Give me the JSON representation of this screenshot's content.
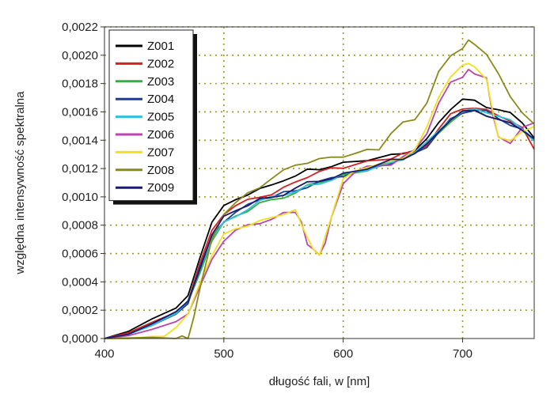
{
  "chart_data": {
    "type": "line",
    "xlabel": "długość fali, w [nm]",
    "ylabel": "względna intensywność spektralna",
    "xlim": [
      400,
      760
    ],
    "ylim": [
      0,
      0.0022
    ],
    "x_ticks": [
      400,
      500,
      600,
      700
    ],
    "x_tick_labels": [
      "400",
      "500",
      "600",
      "700"
    ],
    "y_ticks": [
      0,
      0.0002,
      0.0004,
      0.0006,
      0.0008,
      0.001,
      0.0012,
      0.0014,
      0.0016,
      0.0018,
      0.002,
      0.0022
    ],
    "y_tick_labels": [
      "0,0000",
      "0,0002",
      "0,0004",
      "0,0006",
      "0,0008",
      "0,0010",
      "0,0012",
      "0,0014",
      "0,0016",
      "0,0018",
      "0,0020",
      "0,0022"
    ],
    "grid": "dotted",
    "grid_color": "#9a9a20",
    "legend_position": "top-left",
    "series": [
      {
        "name": "Z001",
        "color": "#000000",
        "x": [
          400,
          420,
          440,
          460,
          470,
          480,
          490,
          500,
          510,
          520,
          530,
          540,
          550,
          560,
          570,
          580,
          590,
          600,
          620,
          640,
          650,
          660,
          670,
          680,
          690,
          700,
          710,
          720,
          730,
          740,
          750,
          760
        ],
        "y": [
          0,
          5e-05,
          0.00013,
          0.00022,
          0.0003,
          0.00058,
          0.00082,
          0.00092,
          0.00098,
          0.00103,
          0.00106,
          0.00108,
          0.00112,
          0.00114,
          0.00118,
          0.0012,
          0.00123,
          0.00124,
          0.00126,
          0.00129,
          0.00132,
          0.00134,
          0.0014,
          0.00152,
          0.00162,
          0.00168,
          0.00168,
          0.00165,
          0.00162,
          0.00158,
          0.00152,
          0.00142
        ]
      },
      {
        "name": "Z002",
        "color": "#d42020",
        "x": [
          400,
          420,
          440,
          460,
          470,
          480,
          490,
          500,
          510,
          520,
          530,
          540,
          550,
          560,
          570,
          580,
          590,
          600,
          620,
          640,
          650,
          660,
          670,
          680,
          690,
          700,
          710,
          720,
          730,
          740,
          750,
          760
        ],
        "y": [
          0,
          4e-05,
          0.00011,
          0.00019,
          0.00028,
          0.00053,
          0.00076,
          0.00088,
          0.00093,
          0.00097,
          0.00101,
          0.00103,
          0.00106,
          0.0011,
          0.00114,
          0.00117,
          0.0012,
          0.00122,
          0.00124,
          0.00127,
          0.0013,
          0.00132,
          0.00138,
          0.00148,
          0.00157,
          0.00162,
          0.00163,
          0.00161,
          0.00158,
          0.00155,
          0.00148,
          0.00132
        ]
      },
      {
        "name": "Z003",
        "color": "#30b040",
        "x": [
          400,
          420,
          440,
          460,
          470,
          480,
          490,
          500,
          510,
          520,
          530,
          540,
          550,
          560,
          570,
          580,
          590,
          600,
          620,
          640,
          650,
          660,
          670,
          680,
          690,
          700,
          710,
          720,
          730,
          740,
          750,
          760
        ],
        "y": [
          0,
          3e-05,
          0.0001,
          0.00017,
          0.00025,
          0.00048,
          0.0007,
          0.00081,
          0.00086,
          0.0009,
          0.00095,
          0.00098,
          0.00101,
          0.00103,
          0.00107,
          0.0011,
          0.00112,
          0.00115,
          0.0012,
          0.00124,
          0.00127,
          0.00131,
          0.00137,
          0.00146,
          0.00154,
          0.00158,
          0.0016,
          0.00158,
          0.00155,
          0.00152,
          0.00148,
          0.0014
        ]
      },
      {
        "name": "Z004",
        "color": "#1f3d90",
        "x": [
          400,
          420,
          440,
          460,
          470,
          480,
          490,
          500,
          510,
          520,
          530,
          540,
          550,
          560,
          570,
          580,
          590,
          600,
          620,
          640,
          650,
          660,
          670,
          680,
          690,
          700,
          710,
          720,
          730,
          740,
          750,
          760
        ],
        "y": [
          0,
          3e-05,
          0.0001,
          0.00017,
          0.00025,
          0.0005,
          0.00073,
          0.00084,
          0.00089,
          0.00093,
          0.00098,
          0.001,
          0.00103,
          0.00105,
          0.00108,
          0.0011,
          0.00112,
          0.00115,
          0.0012,
          0.00124,
          0.00126,
          0.0013,
          0.00136,
          0.00146,
          0.00155,
          0.0016,
          0.00161,
          0.00159,
          0.00155,
          0.00152,
          0.00148,
          0.0014
        ]
      },
      {
        "name": "Z005",
        "color": "#30c0e0",
        "x": [
          400,
          420,
          440,
          460,
          470,
          480,
          490,
          500,
          510,
          520,
          530,
          540,
          550,
          560,
          570,
          580,
          590,
          600,
          620,
          640,
          650,
          660,
          670,
          680,
          690,
          700,
          710,
          720,
          730,
          740,
          750,
          760
        ],
        "y": [
          0,
          3e-05,
          0.0001,
          0.00017,
          0.00025,
          0.00049,
          0.00071,
          0.00082,
          0.00087,
          0.00092,
          0.00096,
          0.00099,
          0.00102,
          0.00104,
          0.00108,
          0.0011,
          0.00112,
          0.00115,
          0.0012,
          0.00124,
          0.00127,
          0.00131,
          0.00137,
          0.00147,
          0.00156,
          0.0016,
          0.00162,
          0.0016,
          0.00156,
          0.00153,
          0.00149,
          0.00141
        ]
      },
      {
        "name": "Z006",
        "color": "#b845b0",
        "x": [
          400,
          420,
          440,
          460,
          470,
          480,
          490,
          500,
          510,
          520,
          530,
          540,
          550,
          560,
          565,
          570,
          575,
          580,
          585,
          590,
          600,
          610,
          620,
          640,
          650,
          660,
          670,
          680,
          690,
          700,
          705,
          710,
          720,
          725,
          730,
          740,
          750,
          760
        ],
        "y": [
          0,
          2e-05,
          7e-05,
          0.00013,
          0.00018,
          0.00035,
          0.00055,
          0.0007,
          0.00077,
          0.0008,
          0.00082,
          0.00084,
          0.00087,
          0.00089,
          0.00081,
          0.00068,
          0.00062,
          0.00059,
          0.00068,
          0.00085,
          0.0011,
          0.00117,
          0.0012,
          0.00124,
          0.00128,
          0.00133,
          0.00145,
          0.00165,
          0.0018,
          0.00186,
          0.00188,
          0.00188,
          0.00183,
          0.0016,
          0.00142,
          0.00138,
          0.00148,
          0.00152
        ]
      },
      {
        "name": "Z007",
        "color": "#f0e020",
        "x": [
          400,
          420,
          440,
          450,
          460,
          470,
          480,
          490,
          500,
          510,
          520,
          530,
          540,
          550,
          560,
          565,
          570,
          575,
          580,
          585,
          590,
          600,
          610,
          620,
          640,
          650,
          660,
          670,
          680,
          690,
          700,
          705,
          710,
          720,
          725,
          730,
          740,
          750,
          760
        ],
        "y": [
          0,
          0,
          1e-05,
          3e-05,
          8e-05,
          0.00017,
          0.0004,
          0.00058,
          0.00072,
          0.00078,
          0.00081,
          0.00083,
          0.00085,
          0.00088,
          0.0009,
          0.00082,
          0.0007,
          0.00063,
          0.0006,
          0.0007,
          0.00087,
          0.00112,
          0.00118,
          0.00121,
          0.00125,
          0.00129,
          0.00134,
          0.00148,
          0.0017,
          0.00185,
          0.00192,
          0.00195,
          0.00192,
          0.00185,
          0.0016,
          0.00142,
          0.00138,
          0.00146,
          0.0015
        ]
      },
      {
        "name": "Z008",
        "color": "#8a8a18",
        "x": [
          400,
          440,
          460,
          465,
          470,
          475,
          480,
          490,
          500,
          510,
          520,
          530,
          540,
          550,
          560,
          570,
          580,
          590,
          600,
          610,
          620,
          630,
          640,
          650,
          660,
          670,
          680,
          690,
          700,
          705,
          710,
          720,
          730,
          740,
          750,
          760
        ],
        "y": [
          0,
          0,
          0,
          0,
          1e-05,
          0.00015,
          0.00035,
          0.0007,
          0.00088,
          0.00095,
          0.00102,
          0.00108,
          0.00114,
          0.00118,
          0.00122,
          0.00124,
          0.00126,
          0.00128,
          0.0013,
          0.00131,
          0.00132,
          0.00133,
          0.00145,
          0.00152,
          0.00155,
          0.00168,
          0.00188,
          0.00198,
          0.00205,
          0.0021,
          0.00208,
          0.002,
          0.00188,
          0.00172,
          0.00158,
          0.0015
        ]
      },
      {
        "name": "Z009",
        "color": "#1a1a70",
        "x": [
          400,
          420,
          440,
          460,
          470,
          480,
          490,
          500,
          510,
          520,
          530,
          540,
          550,
          560,
          570,
          580,
          590,
          600,
          620,
          640,
          650,
          660,
          670,
          680,
          690,
          700,
          710,
          720,
          730,
          740,
          750,
          760
        ],
        "y": [
          0,
          3e-05,
          0.0001,
          0.00018,
          0.00026,
          0.00051,
          0.00074,
          0.00085,
          0.0009,
          0.00094,
          0.00098,
          0.001,
          0.00103,
          0.00106,
          0.00109,
          0.00111,
          0.00113,
          0.00116,
          0.00121,
          0.00125,
          0.00127,
          0.00131,
          0.00137,
          0.00147,
          0.00155,
          0.00159,
          0.0016,
          0.00158,
          0.00155,
          0.00152,
          0.00148,
          0.00141
        ]
      }
    ]
  }
}
